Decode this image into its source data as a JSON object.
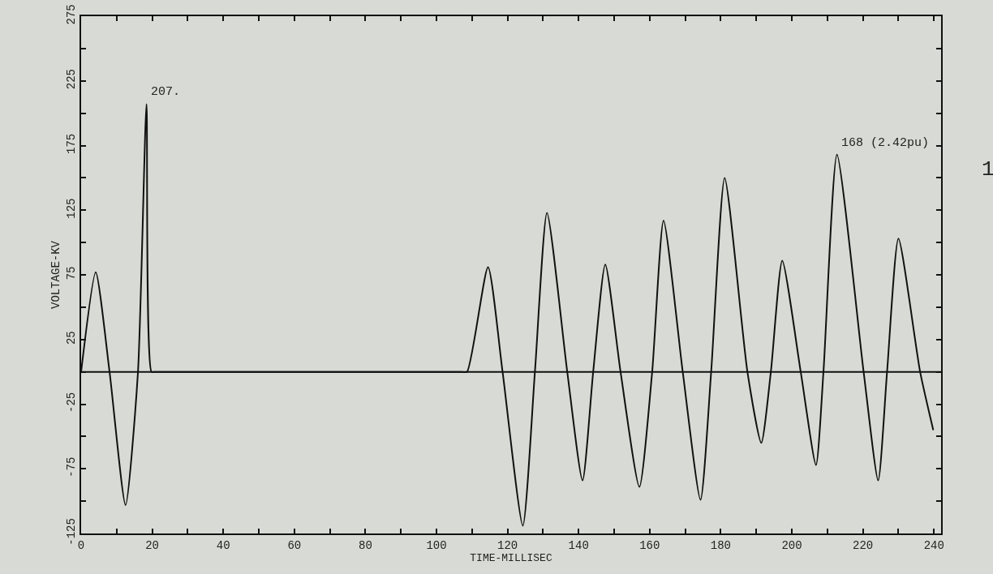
{
  "chart_data": {
    "type": "line",
    "xlabel": "TIME-MILLISEC",
    "ylabel": "VOLTAGE-KV",
    "x": [
      0,
      4.1,
      8,
      12.5,
      16,
      18.4,
      19.8,
      21,
      107,
      108.6,
      114.5,
      118.6,
      124.3,
      127.7,
      131.1,
      136.8,
      141.1,
      144.1,
      147.5,
      151.8,
      157.1,
      160.7,
      163.9,
      169.3,
      174.3,
      177.3,
      181.1,
      187.5,
      191.4,
      194.1,
      197.3,
      202.5,
      206.8,
      208.9,
      212.7,
      220.2,
      224.3,
      226.8,
      230,
      236.1,
      239.8
    ],
    "series": [
      {
        "color": "#111111",
        "values": [
          0,
          77,
          0,
          -103,
          0,
          207,
          0,
          0,
          0,
          0,
          81,
          0,
          -119,
          0,
          123,
          0,
          -84,
          0,
          83,
          0,
          -89,
          0,
          117,
          0,
          -99,
          0,
          150,
          0,
          -55,
          0,
          86,
          0,
          -72,
          0,
          168,
          0,
          -84,
          0,
          103,
          0,
          -45
        ]
      }
    ],
    "xlim": [
      0,
      242
    ],
    "xticks": [
      {
        "value": 0,
        "label": "0"
      },
      {
        "value": 10,
        "label": null
      },
      20,
      {
        "value": 30,
        "label": null
      },
      40,
      {
        "value": 50,
        "label": null
      },
      60,
      {
        "value": 70,
        "label": null
      },
      80,
      {
        "value": 90,
        "label": null
      },
      100,
      {
        "value": 110,
        "label": null
      },
      120,
      {
        "value": 130,
        "label": null
      },
      140,
      {
        "value": 150,
        "label": null
      },
      160,
      {
        "value": 170,
        "label": null
      },
      180,
      {
        "value": 190,
        "label": null
      },
      200,
      {
        "value": 210,
        "label": null
      },
      220,
      {
        "value": 230,
        "label": null
      },
      240
    ],
    "ylim": [
      -125,
      275
    ],
    "yticks": [
      -125,
      {
        "value": -100,
        "label": null
      },
      -75,
      {
        "value": -50,
        "label": null
      },
      -25,
      {
        "value": 0,
        "label": null
      },
      25,
      {
        "value": 50,
        "label": null
      },
      75,
      {
        "value": 100,
        "label": null
      },
      125,
      {
        "value": 150,
        "label": null
      },
      175,
      {
        "value": 200,
        "label": null
      },
      225,
      {
        "value": 250,
        "label": null
      },
      275
    ],
    "ref_lines": [
      {
        "axis": "y",
        "value": 0
      }
    ],
    "annotations": [
      {
        "text": "207.",
        "x": 18.4,
        "y": 207
      },
      {
        "text": "168 (2.42pu)",
        "x": 212.7,
        "y": 168
      },
      "1"
    ],
    "grid": false,
    "marker": "none",
    "line_style": "solid"
  }
}
